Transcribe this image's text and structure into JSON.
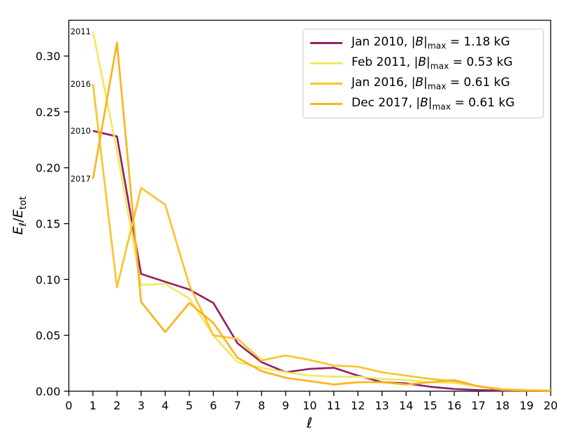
{
  "figure": {
    "background": "#ffffff",
    "axis_color": "#000000"
  },
  "axes": {
    "xlabel": "ℓ",
    "ylabel": {
      "e1": "E",
      "s1": "ℓ",
      "slash": "/",
      "e2": "E",
      "s2": "tot"
    }
  },
  "legend": {
    "entries": [
      {
        "date": "Jan 2010, ",
        "lp": "|",
        "b": "B",
        "rp": "|",
        "sub": "max",
        "eq": " = ",
        "val": "1.18",
        "unit": " kG",
        "color": "#8f2469"
      },
      {
        "date": "Feb 2011, ",
        "lp": "|",
        "b": "B",
        "rp": "|",
        "sub": "max",
        "eq": " = ",
        "val": "0.53",
        "unit": " kG",
        "color": "#f1e95f"
      },
      {
        "date": "Jan 2016, ",
        "lp": "|",
        "b": "B",
        "rp": "|",
        "sub": "max",
        "eq": " = ",
        "val": "0.61",
        "unit": " kG",
        "color": "#fcc32c"
      },
      {
        "date": "Dec 2017, ",
        "lp": "|",
        "b": "B",
        "rp": "|",
        "sub": "max",
        "eq": " = ",
        "val": "0.61",
        "unit": " kG",
        "color": "#fcb31c"
      }
    ]
  },
  "chart_data": {
    "type": "line",
    "title": "",
    "xlabel": "ℓ",
    "ylabel": "E_ℓ/E_tot",
    "xlim": [
      0,
      20
    ],
    "ylim": [
      0,
      0.332
    ],
    "grid": false,
    "legend_position": "upper right",
    "x": [
      1,
      2,
      3,
      4,
      5,
      6,
      7,
      8,
      9,
      10,
      11,
      12,
      13,
      14,
      15,
      16,
      17,
      18,
      19,
      20
    ],
    "xticks": [
      0,
      1,
      2,
      3,
      4,
      5,
      6,
      7,
      8,
      9,
      10,
      11,
      12,
      13,
      14,
      15,
      16,
      17,
      18,
      19,
      20
    ],
    "yticks": [
      0,
      0.05,
      0.1,
      0.15,
      0.2,
      0.25,
      0.3
    ],
    "ytick_labels": [
      "0.00",
      "0.05",
      "0.10",
      "0.15",
      "0.20",
      "0.25",
      "0.30"
    ],
    "series": [
      {
        "name": "Jan 2010, |B|max = 1.18 kG",
        "color": "#8f2469",
        "values": [
          0.233,
          0.228,
          0.105,
          0.098,
          0.091,
          0.079,
          0.043,
          0.026,
          0.017,
          0.02,
          0.021,
          0.014,
          0.008,
          0.007,
          0.004,
          0.002,
          0.001,
          0.0006,
          0.0004,
          0.0002
        ]
      },
      {
        "name": "Feb 2011, |B|max = 0.53 kG",
        "color": "#f1e95f",
        "values": [
          0.322,
          0.215,
          0.095,
          0.096,
          0.083,
          0.05,
          0.026,
          0.021,
          0.017,
          0.014,
          0.013,
          0.013,
          0.011,
          0.01,
          0.008,
          0.0075,
          0.0044,
          0.002,
          0.001,
          0.0006
        ]
      },
      {
        "name": "Jan 2016, |B|max = 0.61 kG",
        "color": "#fcc32c",
        "values": [
          0.275,
          0.093,
          0.182,
          0.167,
          0.095,
          0.05,
          0.047,
          0.0275,
          0.032,
          0.028,
          0.023,
          0.022,
          0.017,
          0.014,
          0.011,
          0.009,
          0.0044,
          0.0013,
          0.0006,
          0.0003
        ]
      },
      {
        "name": "Dec 2017, |B|max = 0.61 kG",
        "color": "#fcb31c",
        "values": [
          0.19,
          0.312,
          0.08,
          0.053,
          0.079,
          0.061,
          0.03,
          0.018,
          0.012,
          0.009,
          0.006,
          0.008,
          0.008,
          0.006,
          0.008,
          0.01,
          0.0044,
          0.0013,
          0.0006,
          0.0003
        ]
      }
    ],
    "annotations": [
      {
        "text": "2011",
        "x": 1,
        "y": 0.322
      },
      {
        "text": "2016",
        "x": 1,
        "y": 0.275
      },
      {
        "text": "2010",
        "x": 1,
        "y": 0.233
      },
      {
        "text": "2017",
        "x": 1,
        "y": 0.19
      }
    ]
  }
}
